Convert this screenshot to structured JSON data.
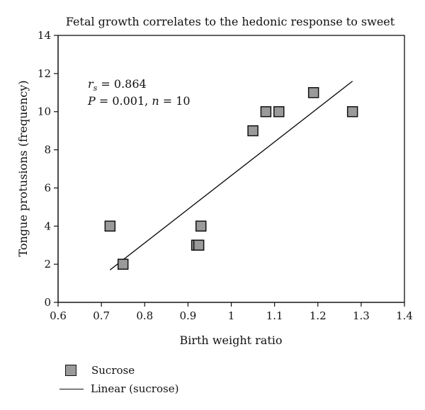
{
  "chart_data": {
    "type": "scatter",
    "title": "Fetal growth correlates to the hedonic response to sweet",
    "xlabel": "Birth weight ratio",
    "ylabel": "Tongue protusions (frequency)",
    "xlim": [
      0.6,
      1.4
    ],
    "ylim": [
      0,
      14
    ],
    "x_ticks": [
      "0.6",
      "0.7",
      "0.8",
      "0.9",
      "1",
      "1.1",
      "1.2",
      "1.3",
      "1.4"
    ],
    "y_ticks": [
      "0",
      "2",
      "4",
      "6",
      "8",
      "10",
      "12",
      "14"
    ],
    "grid": false,
    "series": [
      {
        "name": "Sucrose",
        "marker": "square",
        "color": "#9a9a9a",
        "points": [
          {
            "x": 0.72,
            "y": 4
          },
          {
            "x": 0.75,
            "y": 2
          },
          {
            "x": 0.92,
            "y": 3
          },
          {
            "x": 0.925,
            "y": 3
          },
          {
            "x": 0.93,
            "y": 4
          },
          {
            "x": 1.05,
            "y": 9
          },
          {
            "x": 1.08,
            "y": 10
          },
          {
            "x": 1.11,
            "y": 10
          },
          {
            "x": 1.19,
            "y": 11
          },
          {
            "x": 1.28,
            "y": 10
          }
        ]
      },
      {
        "name": "Linear (sucrose)",
        "type": "line",
        "color": "#111111",
        "points": [
          {
            "x": 0.72,
            "y": 1.7
          },
          {
            "x": 1.28,
            "y": 11.6
          }
        ]
      }
    ],
    "annotation": {
      "rs_prefix": "r",
      "rs_sub": "s",
      "rs_value": " = 0.864",
      "p_label": "P",
      "p_value": " = 0.001, ",
      "n_label": "n",
      "n_value": " = 10"
    },
    "legend": {
      "position": "bottom-left",
      "items": [
        "Sucrose",
        "Linear (sucrose)"
      ]
    }
  }
}
